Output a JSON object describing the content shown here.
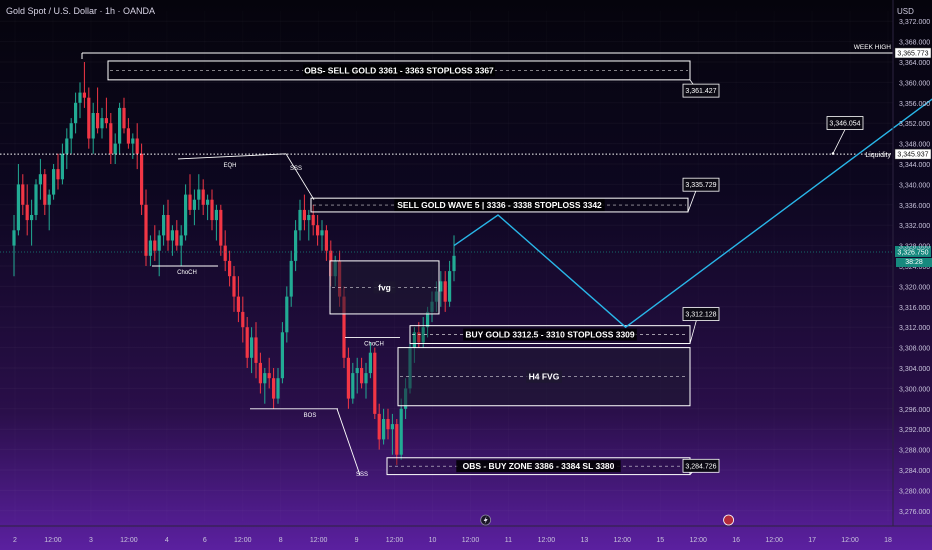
{
  "header": {
    "title": "Gold Spot / U.S. Dollar · 1h · OANDA",
    "currency": "USD"
  },
  "chart_data": {
    "type": "candlestick",
    "ylim": [
      3274,
      3374
    ],
    "y_ticks": [
      "3,276.000",
      "3,280.000",
      "3,284.000",
      "3,288.000",
      "3,292.000",
      "3,296.000",
      "3,300.000",
      "3,304.000",
      "3,308.000",
      "3,312.000",
      "3,316.000",
      "3,320.000",
      "3,324.000",
      "3,328.000",
      "3,332.000",
      "3,336.000",
      "3,340.000",
      "3,344.000",
      "3,348.000",
      "3,352.000",
      "3,356.000",
      "3,360.000",
      "3,364.000",
      "3,368.000",
      "3,372.000"
    ],
    "x_ticks": [
      "2",
      "12:00",
      "3",
      "12:00",
      "4",
      "6",
      "12:00",
      "8",
      "12:00",
      "9",
      "12:00",
      "10",
      "12:00",
      "11",
      "12:00",
      "13",
      "12:00",
      "15",
      "12:00",
      "16",
      "12:00",
      "17",
      "12:00",
      "18"
    ],
    "current_price": "3,326.750",
    "countdown": "38:28",
    "colors": {
      "up": "#22ab94",
      "down": "#f23645",
      "projection": "#29b6e8",
      "current": "#16897e"
    },
    "candles": [
      [
        3328,
        3334,
        3322,
        3331
      ],
      [
        3331,
        3344,
        3330,
        3340
      ],
      [
        3340,
        3342,
        3334,
        3336
      ],
      [
        3336,
        3340,
        3330,
        3333
      ],
      [
        3333,
        3337,
        3328,
        3334
      ],
      [
        3334,
        3341,
        3333,
        3340
      ],
      [
        3340,
        3345,
        3337,
        3342
      ],
      [
        3342,
        3343,
        3334,
        3336
      ],
      [
        3336,
        3339,
        3331,
        3338
      ],
      [
        3338,
        3344,
        3337,
        3343
      ],
      [
        3343,
        3346,
        3339,
        3341
      ],
      [
        3341,
        3348,
        3340,
        3346
      ],
      [
        3346,
        3351,
        3343,
        3349
      ],
      [
        3349,
        3353,
        3346,
        3352
      ],
      [
        3352,
        3358,
        3350,
        3356
      ],
      [
        3356,
        3360,
        3353,
        3358
      ],
      [
        3358,
        3364,
        3355,
        3357
      ],
      [
        3357,
        3359,
        3347,
        3349
      ],
      [
        3349,
        3356,
        3346,
        3354
      ],
      [
        3354,
        3359,
        3350,
        3351
      ],
      [
        3351,
        3355,
        3349,
        3353
      ],
      [
        3353,
        3357,
        3351,
        3352
      ],
      [
        3352,
        3354,
        3344,
        3346
      ],
      [
        3346,
        3350,
        3344,
        3348
      ],
      [
        3348,
        3356,
        3346,
        3355
      ],
      [
        3355,
        3357,
        3350,
        3351
      ],
      [
        3351,
        3353,
        3347,
        3348
      ],
      [
        3348,
        3350,
        3345,
        3349
      ],
      [
        3349,
        3352,
        3343,
        3346
      ],
      [
        3346,
        3348,
        3334,
        3336
      ],
      [
        3336,
        3339,
        3324,
        3326
      ],
      [
        3326,
        3330,
        3324,
        3329
      ],
      [
        3329,
        3332,
        3325,
        3327
      ],
      [
        3327,
        3331,
        3322,
        3330
      ],
      [
        3330,
        3336,
        3328,
        3334
      ],
      [
        3334,
        3337,
        3327,
        3329
      ],
      [
        3329,
        3332,
        3326,
        3331
      ],
      [
        3331,
        3333,
        3327,
        3328
      ],
      [
        3328,
        3332,
        3324,
        3330
      ],
      [
        3330,
        3340,
        3329,
        3338
      ],
      [
        3338,
        3342,
        3334,
        3335
      ],
      [
        3335,
        3339,
        3332,
        3337
      ],
      [
        3337,
        3342,
        3335,
        3339
      ],
      [
        3339,
        3341,
        3334,
        3336
      ],
      [
        3336,
        3338,
        3333,
        3337
      ],
      [
        3337,
        3339,
        3331,
        3333
      ],
      [
        3333,
        3336,
        3329,
        3335
      ],
      [
        3335,
        3336,
        3326,
        3328
      ],
      [
        3328,
        3331,
        3323,
        3325
      ],
      [
        3325,
        3327,
        3320,
        3322
      ],
      [
        3322,
        3324,
        3315,
        3318
      ],
      [
        3318,
        3322,
        3313,
        3315
      ],
      [
        3315,
        3318,
        3309,
        3312
      ],
      [
        3312,
        3314,
        3304,
        3306
      ],
      [
        3306,
        3312,
        3303,
        3310
      ],
      [
        3310,
        3313,
        3302,
        3305
      ],
      [
        3305,
        3307,
        3299,
        3301
      ],
      [
        3301,
        3304,
        3297,
        3303
      ],
      [
        3303,
        3306,
        3300,
        3302
      ],
      [
        3302,
        3304,
        3296,
        3298
      ],
      [
        3298,
        3304,
        3297,
        3302
      ],
      [
        3302,
        3313,
        3301,
        3311
      ],
      [
        3311,
        3320,
        3309,
        3318
      ],
      [
        3318,
        3327,
        3316,
        3325
      ],
      [
        3325,
        3333,
        3323,
        3331
      ],
      [
        3331,
        3337,
        3329,
        3335
      ],
      [
        3335,
        3338,
        3331,
        3333
      ],
      [
        3333,
        3335,
        3329,
        3334
      ],
      [
        3334,
        3336,
        3330,
        3332
      ],
      [
        3332,
        3334,
        3328,
        3330
      ],
      [
        3330,
        3333,
        3327,
        3331
      ],
      [
        3331,
        3332,
        3325,
        3327
      ],
      [
        3327,
        3329,
        3320,
        3322
      ],
      [
        3322,
        3326,
        3320,
        3325
      ],
      [
        3325,
        3327,
        3316,
        3318
      ],
      [
        3318,
        3320,
        3304,
        3306
      ],
      [
        3306,
        3308,
        3296,
        3298
      ],
      [
        3298,
        3305,
        3297,
        3303
      ],
      [
        3303,
        3306,
        3299,
        3304
      ],
      [
        3304,
        3306,
        3300,
        3301
      ],
      [
        3301,
        3305,
        3298,
        3303
      ],
      [
        3303,
        3309,
        3302,
        3307
      ],
      [
        3307,
        3308,
        3294,
        3295
      ],
      [
        3295,
        3297,
        3288,
        3290
      ],
      [
        3290,
        3296,
        3289,
        3294
      ],
      [
        3294,
        3296,
        3290,
        3292
      ],
      [
        3292,
        3295,
        3287,
        3293
      ],
      [
        3293,
        3294,
        3285,
        3287
      ],
      [
        3287,
        3298,
        3286,
        3296
      ],
      [
        3296,
        3302,
        3294,
        3300
      ],
      [
        3300,
        3310,
        3299,
        3308
      ],
      [
        3308,
        3312,
        3305,
        3311
      ],
      [
        3311,
        3313,
        3308,
        3309
      ],
      [
        3309,
        3314,
        3308,
        3312
      ],
      [
        3312,
        3316,
        3310,
        3315
      ],
      [
        3315,
        3319,
        3313,
        3317
      ],
      [
        3317,
        3321,
        3315,
        3319
      ],
      [
        3319,
        3323,
        3316,
        3321
      ],
      [
        3321,
        3323,
        3315,
        3317
      ],
      [
        3317,
        3325,
        3316,
        3323
      ],
      [
        3323,
        3330,
        3321,
        3326
      ]
    ],
    "projection_path": [
      [
        3328,
        0
      ],
      [
        3334,
        10
      ],
      [
        3312,
        39
      ],
      [
        3364,
        120
      ],
      [
        3347,
        143
      ],
      [
        3369,
        177
      ]
    ],
    "zones": [
      {
        "label": "OBS- SELL GOLD 3361 - 3363 STOPLOSS 3367",
        "top": 3364.2,
        "bottom": 3360.5,
        "callout": "3,361.427"
      },
      {
        "label": "SELL GOLD WAVE 5 | 3336 - 3338 STOPLOSS 3342",
        "top": 3337.3,
        "bottom": 3334.6,
        "callout": "3,335.729"
      },
      {
        "label": "BUY GOLD 3312.5 - 3310 STOPLOSS 3309",
        "top": 3312.3,
        "bottom": 3308.8,
        "callout": "3,312.128"
      },
      {
        "label": "H4 FVG",
        "top": 3308.0,
        "bottom": 3296.6,
        "callout": ""
      },
      {
        "label": "OBS - BUY ZONE 3386 - 3384 SL 3380",
        "top": 3286.4,
        "bottom": 3283.1,
        "callout": "3,284.726"
      },
      {
        "label": "fvg",
        "top": 3325.0,
        "bottom": 3314.6,
        "callout": ""
      }
    ],
    "levels": [
      {
        "label": "WEEK HIGH",
        "value": "3,365.773"
      },
      {
        "label": "Liquidity",
        "value": "3,345.937"
      }
    ],
    "free_callout": "3,346.054",
    "structure_labels": [
      "EQH",
      "SSS",
      "ChoCH",
      "ChoCH",
      "BOS",
      "SSS"
    ]
  }
}
